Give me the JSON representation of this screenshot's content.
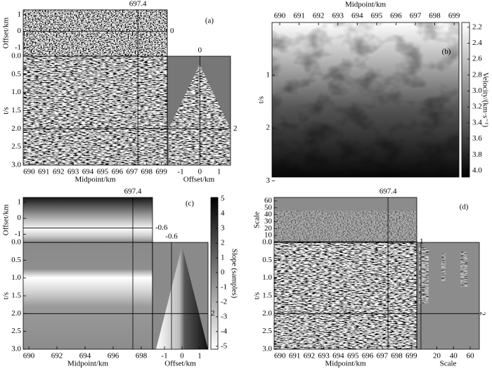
{
  "chart_data": [
    {
      "type": "seismic-cube",
      "label": "(a)",
      "slices": {
        "midpoint": 697.4,
        "offset": 0,
        "time": 2
      },
      "top": {
        "ylabel": "Offset/km",
        "ylim": [
          1.3,
          -1.5
        ],
        "yticks": [
          1,
          0,
          -1
        ]
      },
      "main": {
        "xlabel": "Midpoint/km",
        "ylabel": "t/s",
        "xlim": [
          689.6,
          699.4
        ],
        "xticks": [
          690,
          691,
          692,
          693,
          694,
          695,
          696,
          697,
          698,
          699
        ],
        "ylim": [
          0,
          3
        ],
        "yticks": [
          {
            "value": 0,
            "label": "0.0"
          },
          0.5,
          {
            "value": 1,
            "label": "1.0"
          },
          1.5,
          {
            "value": 2,
            "label": "2.0"
          },
          2.5,
          {
            "value": 3,
            "label": "3.0"
          }
        ]
      },
      "side": {
        "xlabel": "Offset/km",
        "xlim": [
          -1.7,
          1.6
        ],
        "xticks": [
          -1,
          0,
          1
        ]
      }
    },
    {
      "type": "velocity-image",
      "label": "(b)",
      "main": {
        "xlabel": "Midpoint/km",
        "ylabel": "t/s",
        "xlim": [
          689.6,
          699.25
        ],
        "xticks": [
          690,
          691,
          692,
          693,
          694,
          695,
          696,
          697,
          698,
          699
        ],
        "ylim": [
          0,
          2.93
        ],
        "yticks": [
          1,
          2,
          3
        ]
      },
      "colorbar": {
        "label": "Velocity/(km·s⁻¹)",
        "clim": [
          2.14,
          4.08
        ],
        "ticks": [
          2.2,
          2.4,
          2.6,
          2.8,
          {
            "value": 3,
            "label": "3.0"
          },
          3.2,
          3.4,
          3.6,
          3.8,
          {
            "value": 4,
            "label": "4.0"
          }
        ]
      }
    },
    {
      "type": "seismic-cube",
      "label": "(c)",
      "slices": {
        "midpoint": 697.4,
        "offset": -0.6,
        "time": 2
      },
      "top": {
        "ylabel": "Offset/km",
        "ylim": [
          1.3,
          -1.5
        ],
        "yticks": [
          1,
          0,
          -1
        ]
      },
      "main": {
        "xlabel": "Midpoint/km",
        "ylabel": "t/s",
        "xlim": [
          689.6,
          698.8
        ],
        "xticks": [
          690,
          692,
          694,
          696,
          698
        ],
        "ylim": [
          0,
          3
        ],
        "yticks": [
          {
            "value": 0,
            "label": "0.0"
          },
          0.5,
          {
            "value": 1,
            "label": "1.0"
          },
          1.5,
          {
            "value": 2,
            "label": "2.0"
          },
          2.5,
          {
            "value": 3,
            "label": "3.0"
          }
        ]
      },
      "side": {
        "xlabel": "Offset/km",
        "xlim": [
          -1.68,
          1.48
        ],
        "xticks": [
          -1,
          0,
          1
        ]
      },
      "colorbar": {
        "label": "Slope (samples)",
        "clim": [
          5.1,
          -5.2
        ],
        "ticks": [
          5,
          4,
          3,
          2,
          1,
          0,
          -1,
          -2,
          -3,
          -4,
          -5
        ]
      }
    },
    {
      "type": "scale-cube",
      "label": "(d)",
      "slices": {
        "midpoint": 697.4,
        "offset": 1,
        "time": 2
      },
      "top": {
        "ylabel": "Scale",
        "ylim": [
          65,
          0
        ],
        "yticks": [
          60,
          50,
          40,
          30,
          20,
          10,
          0
        ]
      },
      "main": {
        "xlabel": "Midpoint/km",
        "ylabel": "t/s",
        "xlim": [
          689.6,
          699.37
        ],
        "xticks": [
          690,
          691,
          692,
          693,
          694,
          695,
          696,
          697,
          698,
          699
        ],
        "ylim": [
          0,
          3
        ],
        "yticks": [
          {
            "value": 0,
            "label": "0.0"
          },
          0.5,
          {
            "value": 1,
            "label": "1.0"
          },
          1.5,
          {
            "value": 2,
            "label": "2.0"
          },
          2.5,
          {
            "value": 3,
            "label": "3.0"
          }
        ]
      },
      "side": {
        "xlabel": "Scale",
        "xlim": [
          -4,
          71
        ],
        "xticks": [
          20,
          40,
          60
        ]
      }
    }
  ]
}
